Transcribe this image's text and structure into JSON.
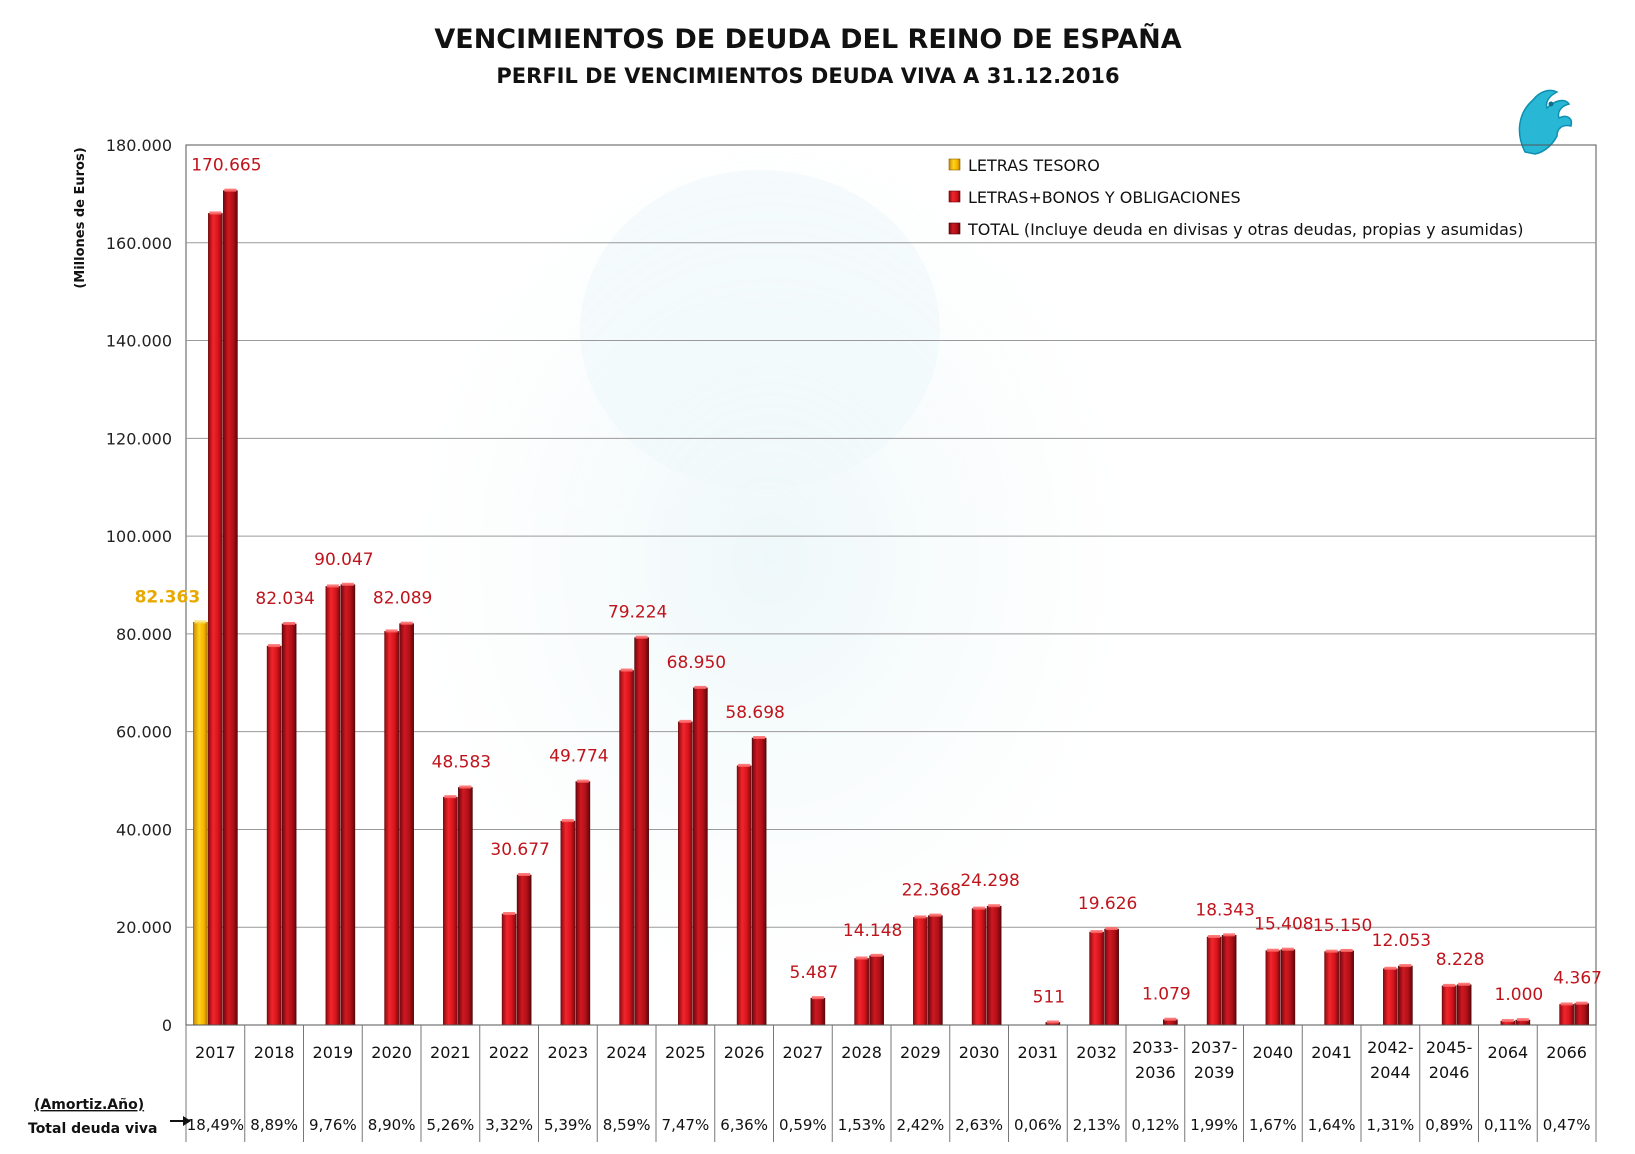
{
  "chart_data": {
    "type": "bar",
    "title": "VENCIMIENTOS DE DEUDA DEL REINO DE ESPAÑA",
    "subtitle": "PERFIL DE VENCIMIENTOS DEUDA VIVA A 31.12.2016",
    "ylabel": "(Millones de Euros)",
    "ylim": [
      0,
      180000
    ],
    "yticks": [
      0,
      20000,
      40000,
      60000,
      80000,
      100000,
      120000,
      140000,
      160000,
      180000
    ],
    "ytick_labels": [
      "0",
      "20.000",
      "40.000",
      "60.000",
      "80.000",
      "100.000",
      "120.000",
      "140.000",
      "160.000",
      "180.000"
    ],
    "grid": true,
    "legend_position": "top-right",
    "categories": [
      "2017",
      "2018",
      "2019",
      "2020",
      "2021",
      "2022",
      "2023",
      "2024",
      "2025",
      "2026",
      "2027",
      "2028",
      "2029",
      "2030",
      "2031",
      "2032",
      "2033-\n2036",
      "2037-\n2039",
      "2040",
      "2041",
      "2042-\n2044",
      "2045-\n2046",
      "2064",
      "2066"
    ],
    "series": [
      {
        "name": "LETRAS TESORO",
        "color": "#f5b800",
        "values": [
          82363,
          0,
          0,
          0,
          0,
          0,
          0,
          0,
          0,
          0,
          0,
          0,
          0,
          0,
          0,
          0,
          0,
          0,
          0,
          0,
          0,
          0,
          0,
          0
        ]
      },
      {
        "name": "LETRAS+BONOS Y OBLIGACIONES",
        "color": "#e8141c",
        "values": [
          166000,
          77500,
          89700,
          80500,
          46600,
          22700,
          41700,
          72500,
          62000,
          53000,
          0,
          13600,
          22000,
          23800,
          0,
          19000,
          0,
          18000,
          15200,
          15000,
          11500,
          8000,
          800,
          4200
        ]
      },
      {
        "name": "TOTAL (Incluye deuda en divisas y otras deudas, propias y asumidas)",
        "color": "#b8101a",
        "values": [
          170665,
          82034,
          90047,
          82089,
          48583,
          30677,
          49774,
          79224,
          68950,
          58698,
          5487,
          14148,
          22368,
          24298,
          511,
          19626,
          1079,
          18343,
          15408,
          15150,
          12053,
          8228,
          1000,
          4367
        ]
      }
    ],
    "data_labels": {
      "letras": {
        "index": 0,
        "text": "82.363"
      },
      "total": [
        "170.665",
        "82.034",
        "90.047",
        "82.089",
        "48.583",
        "30.677",
        "49.774",
        "79.224",
        "68.950",
        "58.698",
        "5.487",
        "14.148",
        "22.368",
        "24.298",
        "511",
        "19.626",
        "1.079",
        "18.343",
        "15.408",
        "15.150",
        "12.053",
        "8.228",
        "1.000",
        "4.367"
      ]
    },
    "percent_row": {
      "header": "(Amortiz.Año)",
      "label": "Total deuda viva",
      "values": [
        "18,49%",
        "8,89%",
        "9,76%",
        "8,90%",
        "5,26%",
        "3,32%",
        "5,39%",
        "8,59%",
        "7,47%",
        "6,36%",
        "0,59%",
        "1,53%",
        "2,42%",
        "2,63%",
        "0,06%",
        "2,13%",
        "0,12%",
        "1,99%",
        "1,67%",
        "1,64%",
        "1,31%",
        "0,89%",
        "0,11%",
        "0,47%"
      ]
    }
  }
}
